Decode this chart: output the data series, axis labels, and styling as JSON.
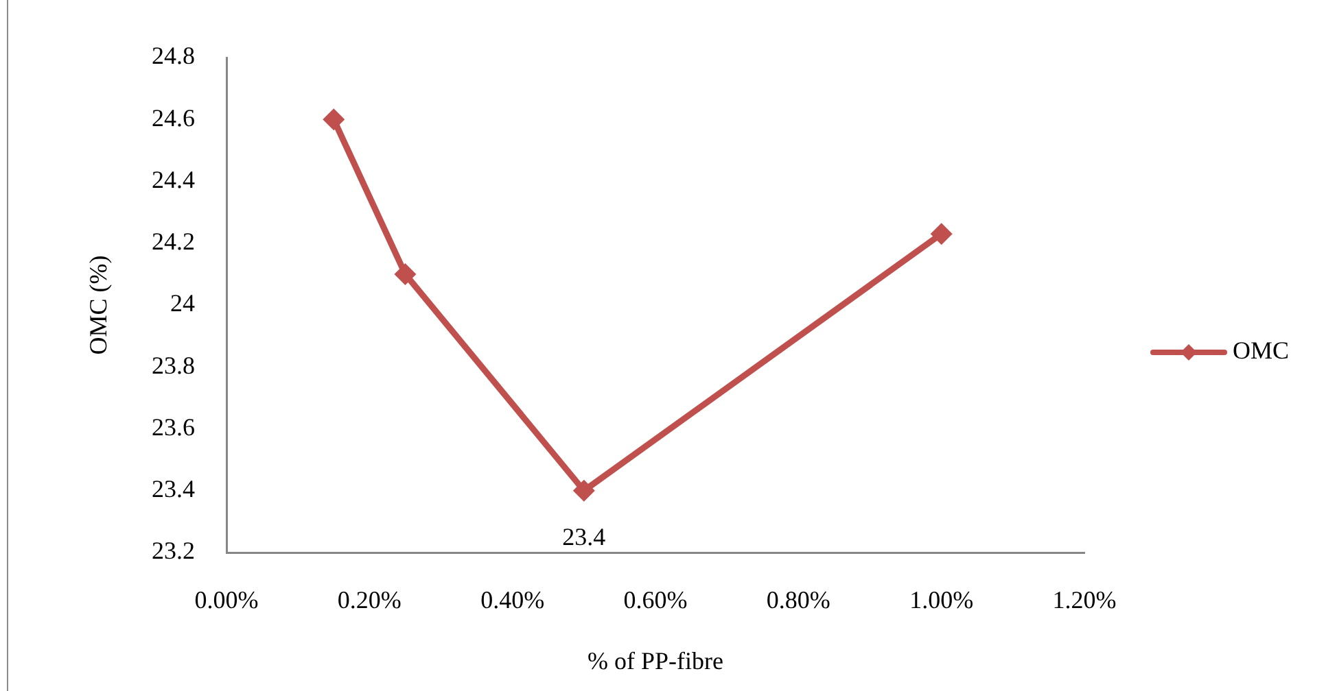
{
  "chart_data": {
    "type": "line",
    "xlabel": "% of PP-fibre",
    "ylabel": "OMC (%)",
    "x": [
      0.15,
      0.25,
      0.5,
      1.0
    ],
    "series": [
      {
        "name": "OMC",
        "color": "#c0504d",
        "values": [
          24.6,
          24.1,
          23.4,
          24.23
        ],
        "value_labels": [
          null,
          null,
          "23.4",
          null
        ]
      }
    ],
    "xlim": [
      0,
      1.2
    ],
    "xticks": [
      {
        "value": 0,
        "label": "0.00%"
      },
      {
        "value": 0.2,
        "label": "0.20%"
      },
      {
        "value": 0.4,
        "label": "0.40%"
      },
      {
        "value": 0.6,
        "label": "0.60%"
      },
      {
        "value": 0.8,
        "label": "0.80%"
      },
      {
        "value": 1.0,
        "label": "1.00%"
      },
      {
        "value": 1.2,
        "label": "1.20%"
      }
    ],
    "ylim": [
      23.2,
      24.8
    ],
    "yticks": [
      23.2,
      23.4,
      23.6,
      23.8,
      24,
      24.2,
      24.4,
      24.6,
      24.8
    ],
    "legend": "right",
    "marker": "diamond",
    "line_style": "solid"
  }
}
